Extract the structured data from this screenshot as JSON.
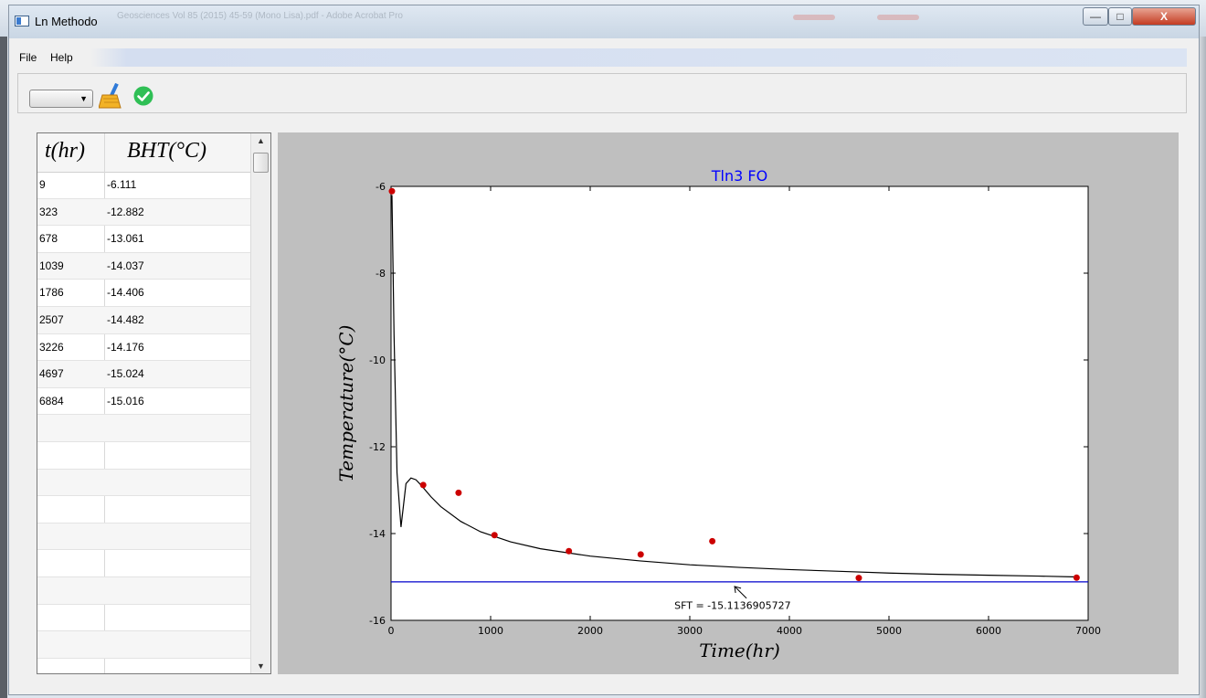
{
  "window": {
    "title": "Ln Methodo",
    "background_title": "Geosciences Vol 85 (2015) 45-59 (Mono Lisa).pdf - Adobe Acrobat Pro",
    "controls": {
      "minimize": "—",
      "maximize": "□",
      "close": "X"
    }
  },
  "menu": {
    "items": [
      "File",
      "Help"
    ]
  },
  "toolbar": {
    "combo_value": "",
    "icons": [
      "broom-icon",
      "checkmark-icon"
    ]
  },
  "table": {
    "columns": [
      "t(hr)",
      "BHT(°C)"
    ],
    "rows": [
      [
        "9",
        "-6.111"
      ],
      [
        "323",
        "-12.882"
      ],
      [
        "678",
        "-13.061"
      ],
      [
        "1039",
        "-14.037"
      ],
      [
        "1786",
        "-14.406"
      ],
      [
        "2507",
        "-14.482"
      ],
      [
        "3226",
        "-14.176"
      ],
      [
        "4697",
        "-15.024"
      ],
      [
        "6884",
        "-15.016"
      ],
      [
        "",
        ""
      ],
      [
        "",
        ""
      ],
      [
        "",
        ""
      ],
      [
        "",
        ""
      ],
      [
        "",
        ""
      ],
      [
        "",
        ""
      ],
      [
        "",
        ""
      ],
      [
        "",
        ""
      ],
      [
        "",
        ""
      ],
      [
        "",
        ""
      ]
    ]
  },
  "colors": {
    "points": "#cc0000",
    "fit_line": "#000000",
    "sft_line": "#0000cc",
    "title": "#0000ff",
    "panel_bg": "#bfbfbf"
  },
  "chart_data": {
    "type": "scatter",
    "title": "Tln3 FO",
    "xlabel": "Time(hr)",
    "ylabel": "Temperature(°C)",
    "xlim": [
      0,
      7000
    ],
    "ylim": [
      -16,
      -6
    ],
    "xticks": [
      0,
      1000,
      2000,
      3000,
      4000,
      5000,
      6000,
      7000
    ],
    "yticks": [
      -6,
      -8,
      -10,
      -12,
      -14,
      -16
    ],
    "series": [
      {
        "kind": "points",
        "x": [
          9,
          323,
          678,
          1039,
          1786,
          2507,
          3226,
          4697,
          6884
        ],
        "y": [
          -6.111,
          -12.882,
          -13.061,
          -14.037,
          -14.406,
          -14.482,
          -14.176,
          -15.024,
          -15.016
        ]
      },
      {
        "kind": "line",
        "x": [
          9,
          30,
          60,
          100,
          150,
          200,
          250,
          300,
          400,
          500,
          700,
          900,
          1200,
          1500,
          2000,
          2500,
          3000,
          3500,
          4000,
          4500,
          5000,
          5500,
          6000,
          6500,
          6884
        ],
        "y": [
          -6.2,
          -9.4,
          -12.6,
          -13.85,
          -12.85,
          -12.72,
          -12.76,
          -12.88,
          -13.15,
          -13.38,
          -13.72,
          -13.96,
          -14.19,
          -14.35,
          -14.52,
          -14.63,
          -14.72,
          -14.78,
          -14.83,
          -14.87,
          -14.91,
          -14.94,
          -14.96,
          -14.98,
          -15.0
        ]
      },
      {
        "kind": "hline",
        "y": -15.1137
      }
    ],
    "annotation": {
      "text": "SFT = -15.1136905727",
      "x": 3450,
      "y": -15.1137,
      "text_x": 3430,
      "text_y": -15.65
    }
  }
}
